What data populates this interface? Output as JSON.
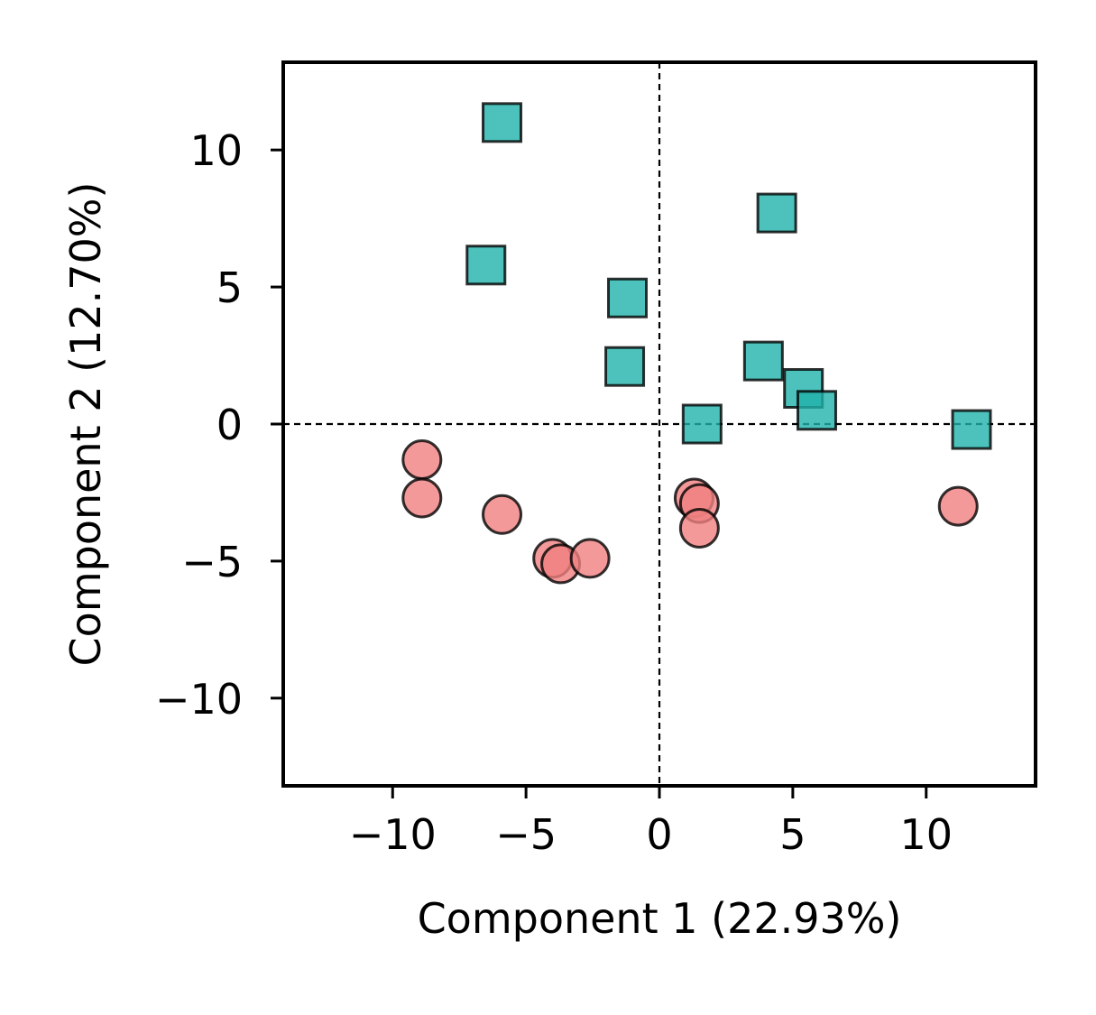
{
  "chart_data": {
    "type": "scatter",
    "title": "",
    "xlabel": "Component 1 (22.93%)",
    "ylabel": "Component 2 (12.70%)",
    "xlim": [
      -14.1,
      14.1
    ],
    "ylim": [
      -13.2,
      13.2
    ],
    "xticks": [
      -10,
      -5,
      0,
      5,
      10
    ],
    "yticks": [
      -10,
      -5,
      0,
      5,
      10
    ],
    "xtick_labels": [
      "−10",
      "−5",
      "0",
      "5",
      "10"
    ],
    "ytick_labels": [
      "−10",
      "−5",
      "0",
      "5",
      "10"
    ],
    "reference_lines": {
      "x": 0,
      "y": 0,
      "style": "dashed"
    },
    "grid": false,
    "legend": null,
    "series": [
      {
        "marker": "square",
        "color": "#20b2aa",
        "points": [
          {
            "x": -5.9,
            "y": 11.0
          },
          {
            "x": -6.5,
            "y": 5.8
          },
          {
            "x": -1.2,
            "y": 4.6
          },
          {
            "x": -1.3,
            "y": 2.1
          },
          {
            "x": 4.4,
            "y": 7.7
          },
          {
            "x": 3.9,
            "y": 2.3
          },
          {
            "x": 5.4,
            "y": 1.3
          },
          {
            "x": 5.9,
            "y": 0.5
          },
          {
            "x": 1.6,
            "y": 0.0
          },
          {
            "x": 11.7,
            "y": -0.2
          }
        ]
      },
      {
        "marker": "circle",
        "color": "#f08080",
        "points": [
          {
            "x": -8.9,
            "y": -1.3
          },
          {
            "x": -8.9,
            "y": -2.7
          },
          {
            "x": -5.9,
            "y": -3.3
          },
          {
            "x": -4.0,
            "y": -4.9
          },
          {
            "x": -3.7,
            "y": -5.1
          },
          {
            "x": -2.6,
            "y": -4.9
          },
          {
            "x": 1.3,
            "y": -2.7
          },
          {
            "x": 1.5,
            "y": -2.9
          },
          {
            "x": 1.5,
            "y": -3.8
          },
          {
            "x": 11.2,
            "y": -3.0
          }
        ]
      }
    ]
  }
}
